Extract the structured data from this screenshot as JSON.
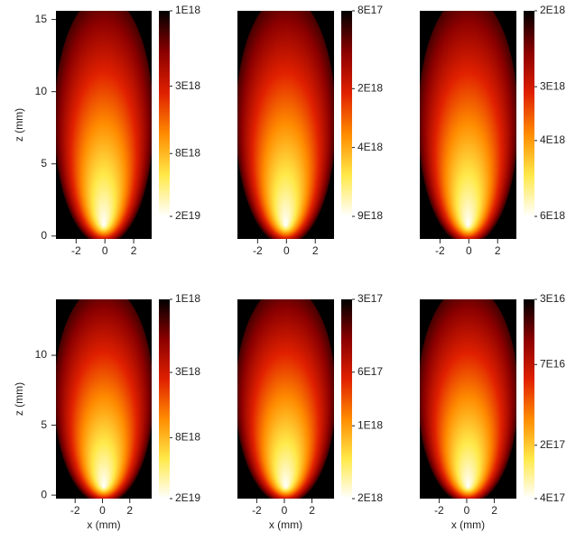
{
  "colormap": [
    "#000000",
    "#8b0000",
    "#e02000",
    "#ff8c00",
    "#ffe94a",
    "#ffffff"
  ],
  "chart_data": [
    {
      "type": "heatmap",
      "ylabel": "z (mm)",
      "xlim": [
        -3.4,
        3.25
      ],
      "xticks": [
        -2,
        0,
        2
      ],
      "ylim": [
        -0.2,
        15.6
      ],
      "yticks": [
        0,
        5,
        10,
        15
      ],
      "colorbar": {
        "log": true,
        "lim": [
          1e+18,
          2e+19
        ],
        "ticks": [
          {
            "value": 1e+18,
            "label": "1E18"
          },
          {
            "value": 3e+18,
            "label": "3E18"
          },
          {
            "value": 8e+18,
            "label": "8E18"
          },
          {
            "value": 2e+19,
            "label": "2E19"
          }
        ]
      }
    },
    {
      "type": "heatmap",
      "xlim": [
        -3.4,
        3.3
      ],
      "xticks": [
        -2,
        0,
        2
      ],
      "colorbar": {
        "log": true,
        "lim": [
          8e+17,
          9e+18
        ],
        "ticks": [
          {
            "value": 8e+17,
            "label": "8E17"
          },
          {
            "value": 2e+18,
            "label": "2E18"
          },
          {
            "value": 4e+18,
            "label": "4E18"
          },
          {
            "value": 9e+18,
            "label": "9E18"
          }
        ]
      }
    },
    {
      "type": "heatmap",
      "xlim": [
        -3.4,
        3.3
      ],
      "xticks": [
        -2,
        0,
        2
      ],
      "colorbar": {
        "log": true,
        "lim": [
          2e+18,
          6e+18
        ],
        "ticks": [
          {
            "value": 2e+18,
            "label": "2E18"
          },
          {
            "value": 3e+18,
            "label": "3E18"
          },
          {
            "value": 4e+18,
            "label": "4E18"
          },
          {
            "value": 6e+18,
            "label": "6E18"
          }
        ]
      }
    },
    {
      "type": "heatmap",
      "ylabel": "z (mm)",
      "xlabel": "x (mm)",
      "xlim": [
        -3.4,
        3.6
      ],
      "xticks": [
        -2,
        0,
        2
      ],
      "ylim": [
        -0.25,
        14.0
      ],
      "yticks": [
        0,
        5,
        10
      ],
      "colorbar": {
        "log": true,
        "lim": [
          1e+18,
          2e+19
        ],
        "ticks": [
          {
            "value": 1e+18,
            "label": "1E18"
          },
          {
            "value": 3e+18,
            "label": "3E18"
          },
          {
            "value": 8e+18,
            "label": "8E18"
          },
          {
            "value": 2e+19,
            "label": "2E19"
          }
        ]
      }
    },
    {
      "type": "heatmap",
      "xlabel": "x (mm)",
      "xlim": [
        -3.4,
        3.6
      ],
      "xticks": [
        -2,
        0,
        2
      ],
      "colorbar": {
        "log": true,
        "lim": [
          3e+17,
          2e+18
        ],
        "ticks": [
          {
            "value": 3e+17,
            "label": "3E17"
          },
          {
            "value": 6e+17,
            "label": "6E17"
          },
          {
            "value": 1e+18,
            "label": "1E18"
          },
          {
            "value": 2e+18,
            "label": "2E18"
          }
        ]
      }
    },
    {
      "type": "heatmap",
      "xlabel": "x (mm)",
      "xlim": [
        -3.4,
        3.6
      ],
      "xticks": [
        -2,
        0,
        2
      ],
      "colorbar": {
        "log": true,
        "lim": [
          3e+16,
          4e+17
        ],
        "ticks": [
          {
            "value": 3e+16,
            "label": "3E16"
          },
          {
            "value": 7e+16,
            "label": "7E16"
          },
          {
            "value": 2e+17,
            "label": "2E17"
          },
          {
            "value": 4e+17,
            "label": "4E17"
          }
        ]
      }
    }
  ]
}
